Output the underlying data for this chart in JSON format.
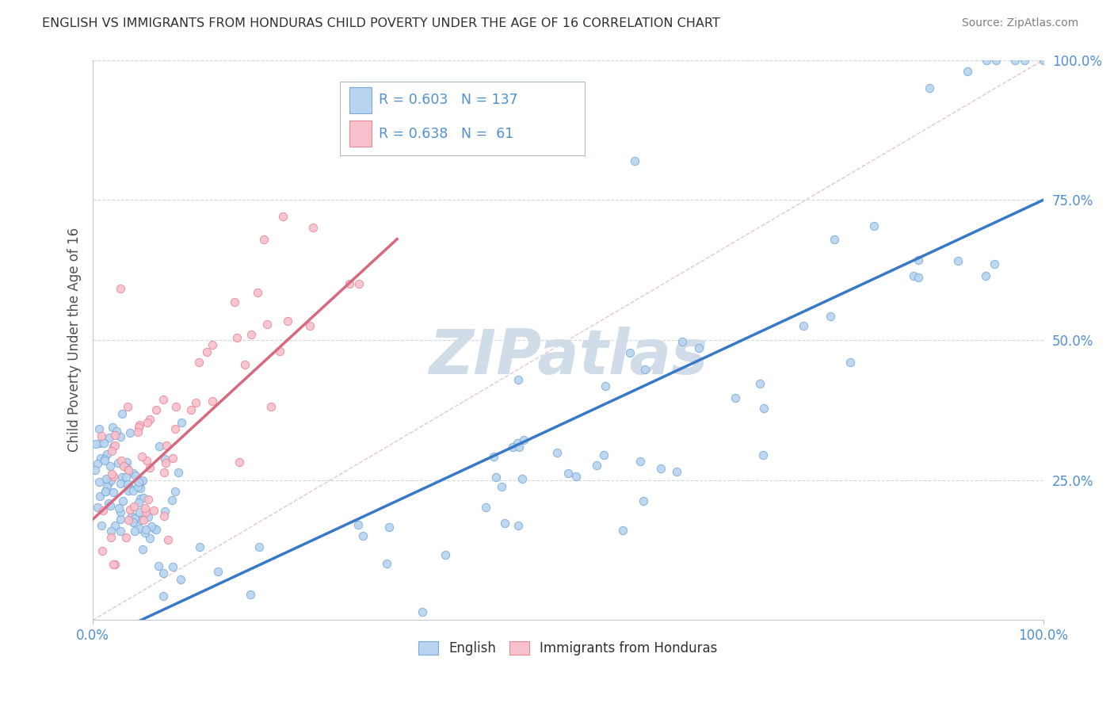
{
  "title": "ENGLISH VS IMMIGRANTS FROM HONDURAS CHILD POVERTY UNDER THE AGE OF 16 CORRELATION CHART",
  "source": "Source: ZipAtlas.com",
  "ylabel": "Child Poverty Under the Age of 16",
  "english_R": 0.603,
  "english_N": 137,
  "honduras_R": 0.638,
  "honduras_N": 61,
  "english_color": "#b8d4f0",
  "english_edge": "#7aaad8",
  "honduras_color": "#f8c0cc",
  "honduras_edge": "#e88898",
  "english_line_color": "#3878c8",
  "honduras_line_color": "#d86880",
  "diagonal_color": "#e0b8c0",
  "watermark": "ZIPatlas",
  "watermark_color": "#d0dce8",
  "tick_color": "#5090d0",
  "ylabel_color": "#505050",
  "title_color": "#303030",
  "source_color": "#808080"
}
